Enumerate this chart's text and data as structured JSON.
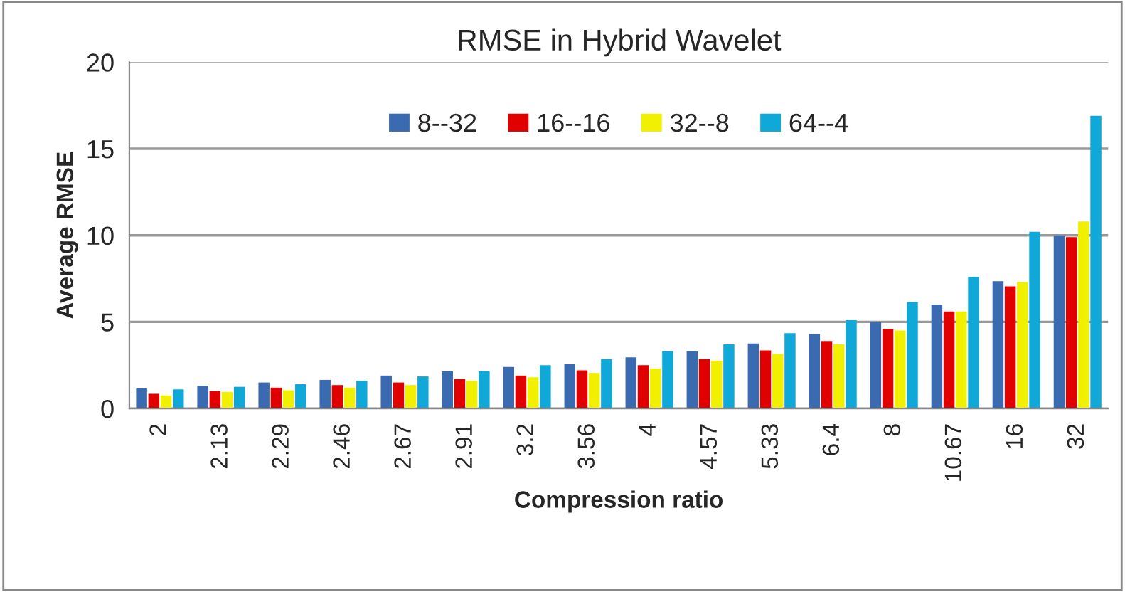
{
  "chart_data": {
    "type": "bar",
    "title": "RMSE in Hybrid Wavelet",
    "xlabel": "Compression ratio",
    "ylabel": "Average RMSE",
    "categories": [
      "2",
      "2.13",
      "2.29",
      "2.46",
      "2.67",
      "2.91",
      "3.2",
      "3.56",
      "4",
      "4.57",
      "5.33",
      "6.4",
      "8",
      "10.67",
      "16",
      "32"
    ],
    "series": [
      {
        "name": "8--32",
        "color": "#3a6bb0",
        "values": [
          1.15,
          1.3,
          1.5,
          1.65,
          1.9,
          2.15,
          2.4,
          2.55,
          2.95,
          3.3,
          3.75,
          4.3,
          5.0,
          6.0,
          7.35,
          10.0
        ]
      },
      {
        "name": "16--16",
        "color": "#e00000",
        "values": [
          0.85,
          1.0,
          1.2,
          1.35,
          1.5,
          1.7,
          1.9,
          2.2,
          2.5,
          2.85,
          3.35,
          3.9,
          4.6,
          5.6,
          7.05,
          9.9
        ]
      },
      {
        "name": "32--8",
        "color": "#f0f000",
        "values": [
          0.75,
          0.95,
          1.05,
          1.2,
          1.35,
          1.6,
          1.8,
          2.05,
          2.3,
          2.75,
          3.15,
          3.7,
          4.5,
          5.6,
          7.3,
          10.8
        ]
      },
      {
        "name": "64--4",
        "color": "#10a8d8",
        "values": [
          1.1,
          1.25,
          1.4,
          1.6,
          1.85,
          2.15,
          2.5,
          2.85,
          3.3,
          3.7,
          4.35,
          5.1,
          6.15,
          7.6,
          10.2,
          16.9
        ]
      }
    ],
    "ylim": [
      0,
      20
    ],
    "yticks": [
      0,
      5,
      10,
      15,
      20
    ],
    "grid": "y",
    "legend": "top"
  }
}
